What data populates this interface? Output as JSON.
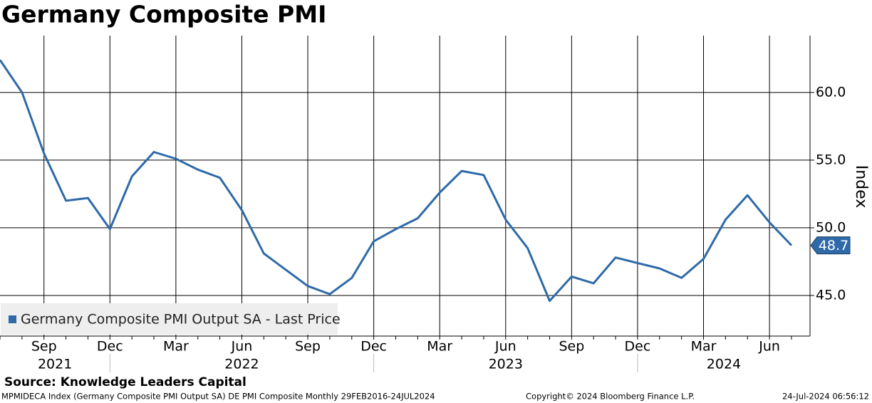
{
  "chart_data": {
    "type": "line",
    "title": "Germany Composite PMI",
    "y_axis_label": "Index",
    "source": "Source: Knowledge Leaders Capital",
    "footer_left": "MPMIDECA Index (Germany Composite PMI Output SA) DE PMI Composite  Monthly 29FEB2016-24JUL2024",
    "footer_center": "Copyright© 2024 Bloomberg Finance L.P.",
    "footer_right": "24-Jul-2024 06:56:12",
    "categories": [
      null,
      null,
      "Sep",
      null,
      null,
      "Dec",
      null,
      null,
      "Mar",
      null,
      null,
      "Jun",
      null,
      null,
      "Sep",
      null,
      null,
      "Dec",
      null,
      null,
      "Mar",
      null,
      null,
      "Jun",
      null,
      null,
      "Sep",
      null,
      null,
      "Dec",
      null,
      null,
      "Mar",
      null,
      null,
      "Jun",
      null
    ],
    "x_groups": [
      {
        "label": "2021",
        "start": 0,
        "end": 5
      },
      {
        "label": "2022",
        "start": 6,
        "end": 17
      },
      {
        "label": "2023",
        "start": 18,
        "end": 29
      },
      {
        "label": "2024",
        "start": 30,
        "end": 36
      }
    ],
    "series": [
      {
        "name": "Germany Composite PMI Output SA - Last Price",
        "color": "#2e6aa8",
        "values": [
          62.4,
          60.0,
          55.5,
          52.0,
          52.2,
          49.9,
          53.8,
          55.6,
          55.1,
          54.3,
          53.7,
          51.3,
          48.1,
          46.9,
          45.7,
          45.1,
          46.3,
          49.0,
          49.9,
          50.7,
          52.6,
          54.2,
          53.9,
          50.6,
          48.5,
          44.6,
          46.4,
          45.9,
          47.8,
          47.4,
          47.0,
          46.3,
          47.7,
          50.6,
          52.4,
          50.4,
          48.7
        ],
        "last_label": "48.7"
      }
    ],
    "ylim": [
      42.0,
      64.2
    ],
    "yticks": [
      {
        "value": 45,
        "label": "45.0"
      },
      {
        "value": 50,
        "label": "50.0"
      },
      {
        "value": 55,
        "label": "55.0"
      },
      {
        "value": 60,
        "label": "60.0"
      }
    ],
    "grid": true,
    "legend": "lower left"
  }
}
